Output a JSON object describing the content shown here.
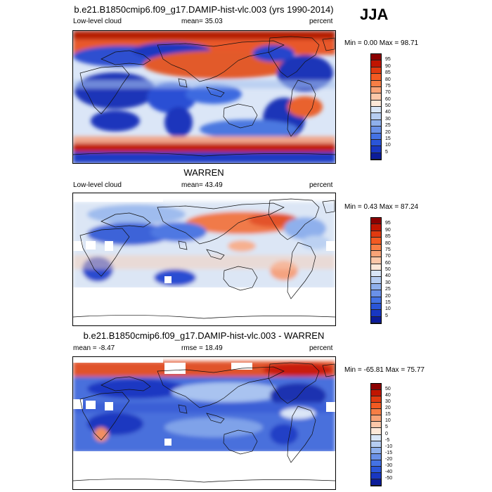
{
  "season": "JJA",
  "panels": [
    {
      "id": "model",
      "title": "b.e21.B1850cmip6.f09_g17.DAMIP-hist-vlc.003 (yrs 1990-2014)",
      "left_label": "Low-level cloud",
      "center_label": "mean=  35.03",
      "right_label": "percent",
      "minmax": "Min =   0.00 Max =  98.71",
      "colorbar": {
        "labels": [
          "95",
          "90",
          "85",
          "80",
          "75",
          "70",
          "60",
          "50",
          "40",
          "30",
          "25",
          "20",
          "15",
          "10",
          "5"
        ],
        "colors": [
          "#8b0000",
          "#c01500",
          "#e03a10",
          "#f25a22",
          "#f77e45",
          "#f9a377",
          "#fbc7a8",
          "#fde8d8",
          "#d9e6f7",
          "#b6cdf1",
          "#8fb0ec",
          "#6a91e8",
          "#4472e4",
          "#2a55d8",
          "#1837c2",
          "#0b1c99"
        ]
      }
    },
    {
      "id": "obs",
      "title": "WARREN",
      "left_label": "Low-level cloud",
      "center_label": "mean=  43.49",
      "right_label": "percent",
      "minmax": "Min =   0.43 Max =  87.24",
      "colorbar": {
        "labels": [
          "95",
          "90",
          "85",
          "80",
          "75",
          "70",
          "60",
          "50",
          "40",
          "30",
          "25",
          "20",
          "15",
          "10",
          "5"
        ],
        "colors": [
          "#8b0000",
          "#c01500",
          "#e03a10",
          "#f25a22",
          "#f77e45",
          "#f9a377",
          "#fbc7a8",
          "#fde8d8",
          "#d9e6f7",
          "#b6cdf1",
          "#8fb0ec",
          "#6a91e8",
          "#4472e4",
          "#2a55d8",
          "#1837c2",
          "#0b1c99"
        ]
      }
    },
    {
      "id": "diff",
      "title": "b.e21.B1850cmip6.f09_g17.DAMIP-hist-vlc.003 - WARREN",
      "left_label": "mean =  -8.47",
      "center_label": "rmse =  18.49",
      "right_label": "percent",
      "minmax": "Min = -65.81 Max =  75.77",
      "colorbar": {
        "labels": [
          "50",
          "40",
          "30",
          "20",
          "15",
          "10",
          "5",
          "0",
          "-5",
          "-10",
          "-15",
          "-20",
          "-30",
          "-40",
          "-50"
        ],
        "colors": [
          "#8b0000",
          "#c01500",
          "#e03a10",
          "#f25a22",
          "#f77e45",
          "#f9a377",
          "#fbc7a8",
          "#fde8d8",
          "#d9e6f7",
          "#b6cdf1",
          "#8fb0ec",
          "#6a91e8",
          "#4472e4",
          "#2a55d8",
          "#1837c2",
          "#0b1c99"
        ]
      }
    }
  ]
}
